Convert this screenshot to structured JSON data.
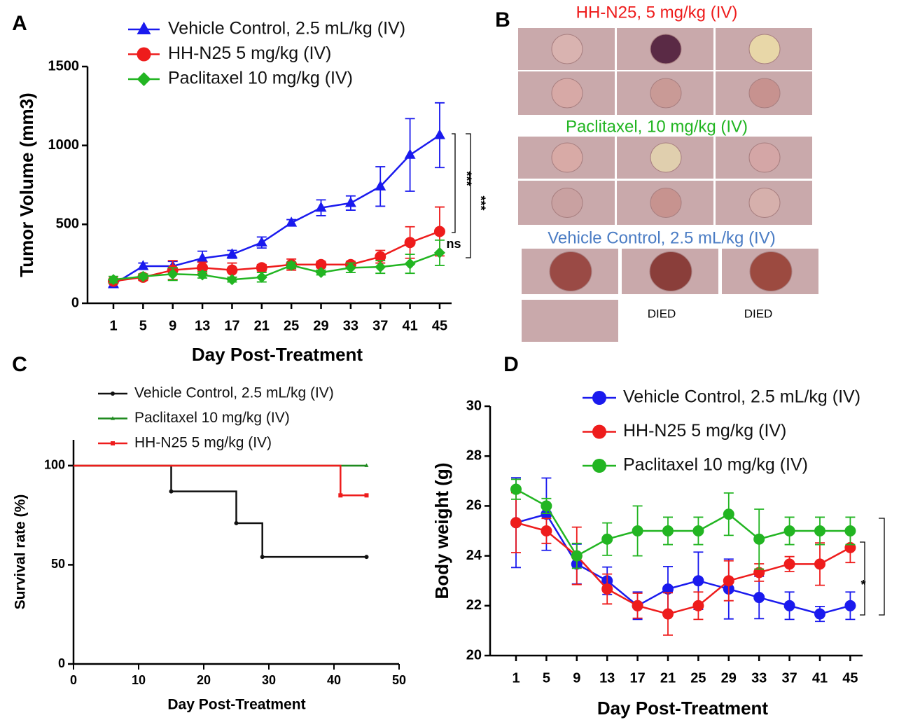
{
  "chart_data": [
    {
      "type": "line",
      "panel": "A",
      "ylabel": "Tumor Volume (mm3)",
      "xlabel": "Day Post-Treatment",
      "categories": [
        1,
        5,
        9,
        13,
        17,
        21,
        25,
        29,
        33,
        37,
        41,
        45
      ],
      "ylim": [
        0,
        1500
      ],
      "yticks": [
        0,
        500,
        1000,
        1500
      ],
      "series": [
        {
          "name": "Vehicle Control,  2.5 mL/kg (IV)",
          "color": "#1a1aee",
          "marker": "triangle",
          "values": [
            120,
            235,
            235,
            285,
            310,
            385,
            510,
            605,
            635,
            740,
            940,
            1065
          ],
          "errors": [
            15,
            20,
            30,
            45,
            25,
            35,
            20,
            50,
            45,
            125,
            230,
            205
          ]
        },
        {
          "name": "HH-N25  5 mg/kg (IV)",
          "color": "#ee1c1c",
          "marker": "circle",
          "values": [
            140,
            165,
            210,
            225,
            210,
            225,
            245,
            245,
            245,
            295,
            385,
            455
          ],
          "errors": [
            15,
            20,
            60,
            35,
            45,
            20,
            35,
            20,
            20,
            40,
            100,
            155
          ]
        },
        {
          "name": "Paclitaxel  10 mg/kg (IV)",
          "color": "#22b522",
          "marker": "diamond",
          "values": [
            150,
            170,
            185,
            180,
            150,
            165,
            240,
            195,
            225,
            230,
            250,
            320
          ],
          "errors": [
            20,
            15,
            40,
            20,
            15,
            30,
            20,
            15,
            30,
            40,
            60,
            80
          ]
        }
      ],
      "annotations": [
        "***",
        "***",
        "ns"
      ]
    },
    {
      "type": "step",
      "panel": "C",
      "ylabel": "Survival rate (%)",
      "xlabel": "Day Post-Treatment",
      "xlim": [
        0,
        50
      ],
      "xticks": [
        0,
        10,
        20,
        30,
        40,
        50
      ],
      "ylim": [
        0,
        113
      ],
      "yticks": [
        0,
        50,
        100
      ],
      "series": [
        {
          "name": "Vehicle Control, 2.5 mL/kg (IV)",
          "color": "#111111",
          "marker": "circle",
          "x": [
            0,
            15,
            25,
            29,
            45
          ],
          "values": [
            100,
            87,
            71,
            54,
            54
          ]
        },
        {
          "name": "Paclitaxel 10 mg/kg (IV)",
          "color": "#1f8a1f",
          "marker": "triangle",
          "x": [
            0,
            45
          ],
          "values": [
            100,
            100
          ]
        },
        {
          "name": "HH-N25 5 mg/kg (IV)",
          "color": "#ee1c1c",
          "marker": "square",
          "x": [
            0,
            41,
            45
          ],
          "values": [
            100,
            85,
            85
          ]
        }
      ]
    },
    {
      "type": "line",
      "panel": "D",
      "ylabel": "Body weight (g)",
      "xlabel": "Day Post-Treatment",
      "categories": [
        1,
        5,
        9,
        13,
        17,
        21,
        25,
        29,
        33,
        37,
        41,
        45
      ],
      "ylim": [
        20,
        30
      ],
      "yticks": [
        20,
        22,
        24,
        26,
        28,
        30
      ],
      "series": [
        {
          "name": "Vehicle Control, 2.5 mL/kg (IV)",
          "color": "#1a1aee",
          "marker": "circle",
          "values": [
            25.33,
            25.67,
            23.67,
            23,
            22,
            22.67,
            23,
            22.67,
            22.33,
            22,
            21.67,
            22
          ],
          "errors": [
            1.8,
            1.45,
            0.8,
            0.55,
            0.55,
            0.9,
            1.15,
            1.2,
            0.85,
            0.55,
            0.3,
            0.55
          ]
        },
        {
          "name": "HH-N25 5 mg/kg (IV)",
          "color": "#ee1c1c",
          "marker": "circle",
          "values": [
            25.33,
            25,
            24,
            22.67,
            22,
            21.67,
            22,
            23,
            23.33,
            23.67,
            23.67,
            24.33
          ],
          "errors": [
            1.2,
            0.5,
            1.15,
            0.6,
            0.5,
            0.85,
            0.55,
            0.8,
            0.35,
            0.3,
            0.85,
            0.6
          ]
        },
        {
          "name": "Paclitaxel 10 mg/kg (IV)",
          "color": "#22b522",
          "marker": "circle",
          "values": [
            26.67,
            26,
            24,
            24.67,
            25,
            25,
            25,
            25.67,
            24.67,
            25,
            25,
            25
          ],
          "errors": [
            0.4,
            0.3,
            0.5,
            0.65,
            1,
            0.55,
            0.55,
            0.85,
            1.2,
            0.55,
            0.55,
            0.55
          ]
        }
      ],
      "annotations": [
        "*"
      ]
    }
  ],
  "photos": {
    "panel": "B",
    "groups": [
      {
        "label": "HH-N25, 5 mg/kg (IV)",
        "color": "#ee1c1c"
      },
      {
        "label": "Paclitaxel, 10 mg/kg (IV)",
        "color": "#22b522"
      },
      {
        "label": "Vehicle Control, 2.5 mL/kg (IV)",
        "color": "#4a7cc4"
      }
    ],
    "died": [
      "DIED",
      "DIED"
    ]
  }
}
